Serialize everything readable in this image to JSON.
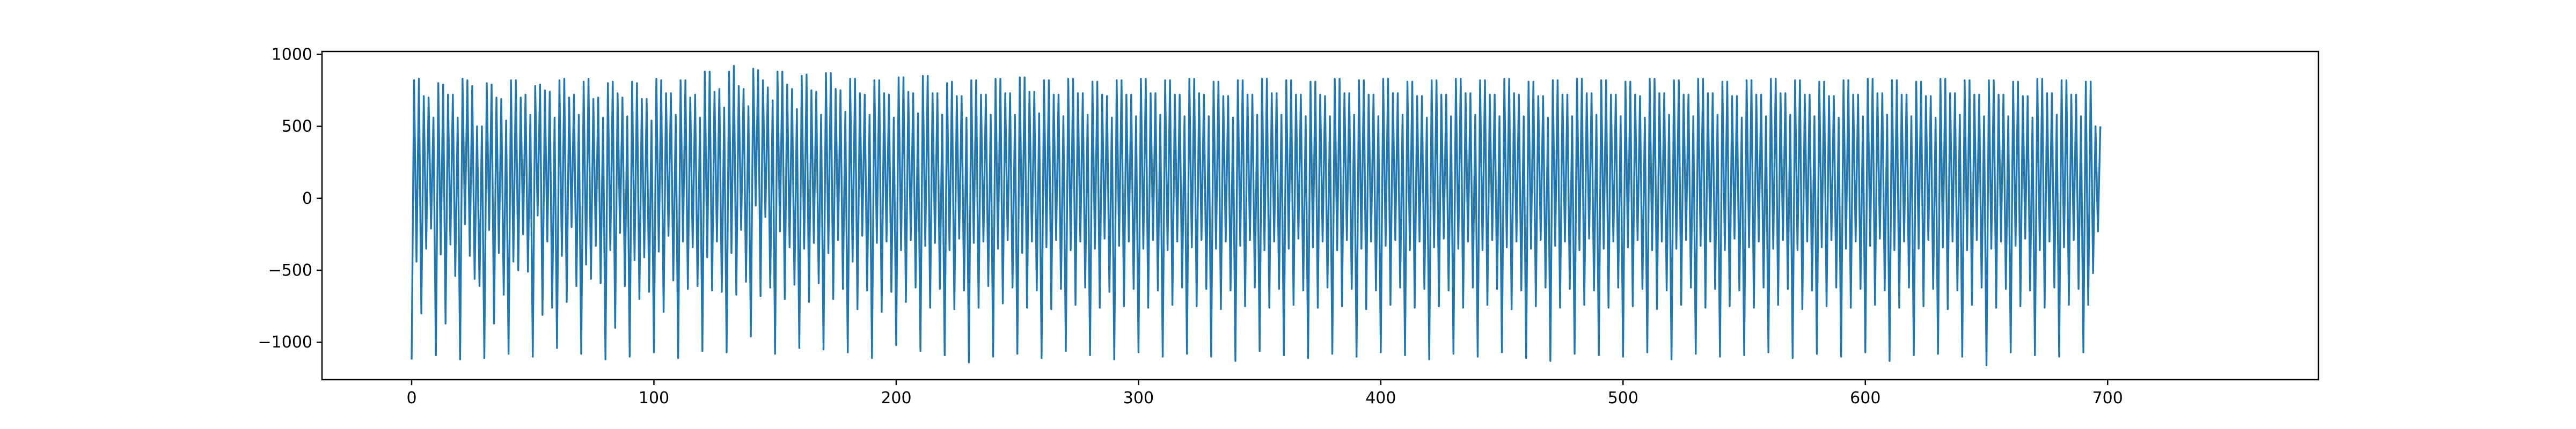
{
  "chart_data": {
    "type": "line",
    "title": "",
    "xlabel": "",
    "ylabel": "",
    "xlim": [
      -37,
      787
    ],
    "ylim": [
      -1260,
      1020
    ],
    "grid": false,
    "legend": "none",
    "line_color": "#1f77b4",
    "x_ticks": [
      0,
      100,
      200,
      300,
      400,
      500,
      600,
      700
    ],
    "y_ticks": [
      -1000,
      -500,
      0,
      500,
      1000
    ],
    "x_tick_labels": [
      "0",
      "100",
      "200",
      "300",
      "400",
      "500",
      "600",
      "700"
    ],
    "y_tick_labels": [
      "−1000",
      "−500",
      "0",
      "500",
      "1000"
    ],
    "series": [
      {
        "name": "",
        "x_start": 0,
        "x_step": 1,
        "values": [
          -1120,
          820,
          -440,
          830,
          -800,
          710,
          -350,
          700,
          -210,
          560,
          -1090,
          800,
          -390,
          790,
          -870,
          720,
          -320,
          720,
          -540,
          560,
          -1120,
          830,
          -180,
          820,
          -400,
          780,
          -560,
          500,
          -610,
          500,
          -1110,
          800,
          -220,
          790,
          -870,
          700,
          -380,
          690,
          -670,
          540,
          -1080,
          820,
          -440,
          820,
          -500,
          700,
          -250,
          720,
          -510,
          580,
          -1100,
          780,
          -120,
          790,
          -810,
          750,
          -300,
          740,
          -760,
          560,
          -1040,
          820,
          -400,
          830,
          -720,
          700,
          -200,
          720,
          -610,
          580,
          -1080,
          810,
          -460,
          830,
          -560,
          690,
          -330,
          700,
          -590,
          560,
          -1120,
          800,
          -360,
          810,
          -900,
          730,
          -240,
          700,
          -610,
          570,
          -1100,
          810,
          -430,
          800,
          -700,
          690,
          -410,
          690,
          -650,
          540,
          -1070,
          830,
          -370,
          820,
          -790,
          730,
          -260,
          730,
          -570,
          580,
          -1110,
          820,
          -300,
          820,
          -630,
          700,
          -340,
          720,
          -610,
          560,
          -1060,
          880,
          -410,
          880,
          -640,
          740,
          -300,
          760,
          -650,
          630,
          -1070,
          880,
          -380,
          920,
          -670,
          780,
          -220,
          760,
          -580,
          640,
          -960,
          900,
          -50,
          890,
          -680,
          820,
          -130,
          770,
          -620,
          680,
          -1080,
          880,
          -230,
          880,
          -700,
          790,
          -340,
          760,
          -600,
          620,
          -1040,
          850,
          -350,
          860,
          -720,
          750,
          -310,
          740,
          -590,
          580,
          -1050,
          870,
          -380,
          870,
          -700,
          760,
          -290,
          750,
          -630,
          600,
          -1070,
          830,
          -440,
          830,
          -770,
          730,
          -260,
          720,
          -640,
          580,
          -1110,
          820,
          -310,
          820,
          -790,
          730,
          -300,
          720,
          -650,
          560,
          -1020,
          840,
          -360,
          840,
          -720,
          740,
          -290,
          730,
          -620,
          590,
          -1060,
          850,
          -330,
          850,
          -760,
          730,
          -310,
          730,
          -630,
          580,
          -1090,
          800,
          -360,
          810,
          -770,
          710,
          -280,
          710,
          -640,
          560,
          -1140,
          820,
          -310,
          820,
          -760,
          720,
          -300,
          720,
          -610,
          580,
          -1100,
          830,
          -350,
          830,
          -730,
          730,
          -290,
          730,
          -620,
          580,
          -1080,
          840,
          -380,
          840,
          -760,
          740,
          -300,
          740,
          -640,
          590,
          -1110,
          820,
          -340,
          820,
          -770,
          720,
          -290,
          720,
          -630,
          570,
          -1060,
          830,
          -360,
          830,
          -740,
          730,
          -300,
          730,
          -620,
          580,
          -1090,
          810,
          -350,
          810,
          -760,
          720,
          -280,
          710,
          -650,
          560,
          -1120,
          820,
          -330,
          820,
          -750,
          720,
          -300,
          720,
          -630,
          570,
          -1070,
          830,
          -350,
          830,
          -760,
          730,
          -290,
          730,
          -640,
          580,
          -1100,
          820,
          -360,
          820,
          -740,
          720,
          -300,
          720,
          -620,
          570,
          -1080,
          830,
          -340,
          830,
          -750,
          730,
          -290,
          720,
          -630,
          570,
          -1100,
          810,
          -350,
          810,
          -770,
          710,
          -300,
          710,
          -640,
          560,
          -1130,
          820,
          -330,
          820,
          -750,
          720,
          -290,
          720,
          -620,
          580,
          -1060,
          830,
          -360,
          830,
          -760,
          730,
          -300,
          730,
          -630,
          580,
          -1090,
          820,
          -350,
          820,
          -740,
          720,
          -280,
          720,
          -640,
          570,
          -1110,
          810,
          -340,
          810,
          -760,
          720,
          -300,
          710,
          -620,
          570,
          -1080,
          830,
          -360,
          830,
          -750,
          730,
          -290,
          730,
          -630,
          580,
          -1100,
          820,
          -350,
          820,
          -770,
          720,
          -300,
          720,
          -640,
          570,
          -1070,
          830,
          -330,
          830,
          -740,
          730,
          -290,
          730,
          -620,
          580,
          -1090,
          810,
          -360,
          810,
          -760,
          710,
          -300,
          710,
          -630,
          560,
          -1120,
          820,
          -340,
          820,
          -750,
          720,
          -280,
          720,
          -640,
          570,
          -1080,
          830,
          -350,
          830,
          -760,
          730,
          -300,
          730,
          -620,
          580,
          -1100,
          820,
          -360,
          820,
          -740,
          720,
          -290,
          720,
          -630,
          570,
          -1070,
          830,
          -340,
          830,
          -770,
          730,
          -300,
          720,
          -640,
          570,
          -1110,
          810,
          -350,
          810,
          -750,
          710,
          -290,
          710,
          -620,
          560,
          -1130,
          820,
          -330,
          820,
          -760,
          720,
          -300,
          720,
          -630,
          570,
          -1080,
          830,
          -360,
          830,
          -740,
          730,
          -280,
          730,
          -640,
          580,
          -1090,
          820,
          -350,
          820,
          -760,
          720,
          -300,
          720,
          -620,
          570,
          -1100,
          810,
          -340,
          810,
          -750,
          720,
          -290,
          710,
          -630,
          560,
          -1070,
          830,
          -360,
          830,
          -770,
          730,
          -300,
          730,
          -640,
          580,
          -1120,
          820,
          -350,
          820,
          -740,
          720,
          -290,
          720,
          -620,
          570,
          -1080,
          830,
          -330,
          830,
          -760,
          730,
          -300,
          730,
          -630,
          580,
          -1100,
          810,
          -360,
          810,
          -750,
          710,
          -280,
          710,
          -640,
          560,
          -1090,
          820,
          -340,
          820,
          -760,
          720,
          -300,
          720,
          -620,
          570,
          -1070,
          830,
          -350,
          830,
          -740,
          730,
          -290,
          730,
          -630,
          580,
          -1110,
          820,
          -360,
          820,
          -770,
          720,
          -300,
          720,
          -640,
          570,
          -1080,
          810,
          -340,
          810,
          -750,
          710,
          -290,
          710,
          -620,
          560,
          -1100,
          820,
          -350,
          820,
          -760,
          720,
          -300,
          720,
          -630,
          570,
          -1070,
          830,
          -330,
          830,
          -740,
          730,
          -280,
          730,
          -640,
          580,
          -1130,
          820,
          -360,
          820,
          -760,
          720,
          -300,
          720,
          -620,
          570,
          -1090,
          810,
          -350,
          810,
          -750,
          710,
          -290,
          710,
          -630,
          560,
          -1080,
          830,
          -340,
          830,
          -770,
          730,
          -300,
          730,
          -640,
          580,
          -1100,
          820,
          -360,
          820,
          -740,
          720,
          -290,
          720,
          -620,
          570,
          -1160,
          820,
          -350,
          820,
          -760,
          720,
          -300,
          720,
          -630,
          570,
          -1070,
          810,
          -330,
          810,
          -750,
          710,
          -280,
          710,
          -640,
          560,
          -1090,
          830,
          -360,
          830,
          -760,
          730,
          -300,
          730,
          -620,
          580,
          -1100,
          820,
          -340,
          820,
          -740,
          720,
          -290,
          720,
          -630,
          570,
          -1070,
          810,
          -740,
          810,
          -520,
          500,
          -230,
          500
        ]
      }
    ]
  }
}
